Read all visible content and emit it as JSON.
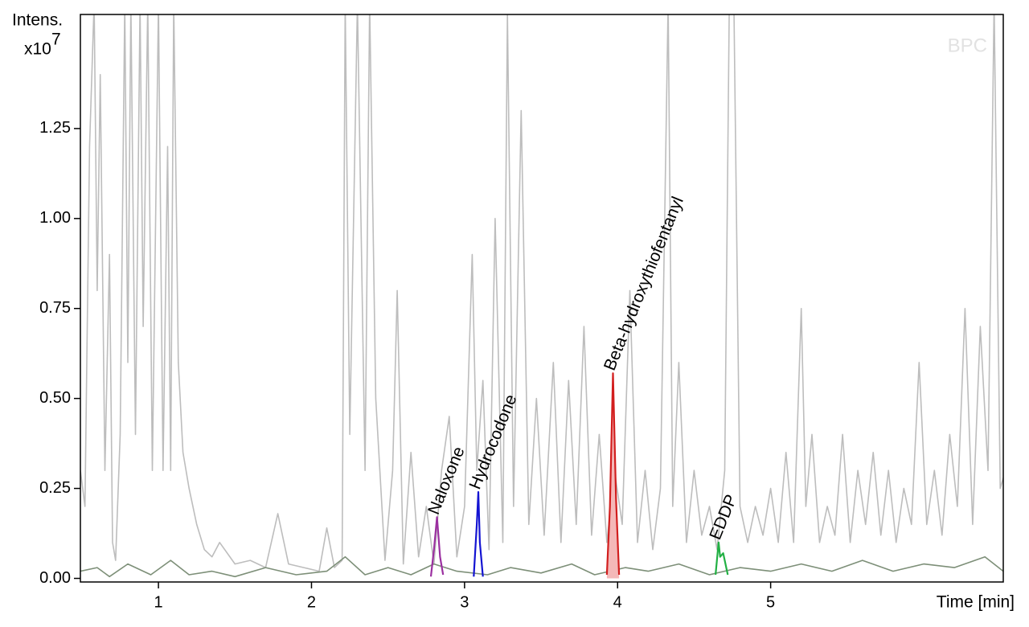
{
  "chart_data": {
    "type": "line",
    "ylabel": "Intens.",
    "yscale_label": "x10",
    "yscale_exponent": 7,
    "xlabel": "Time [min]",
    "watermark": "BPC",
    "xlim": [
      0.49,
      6.52
    ],
    "ylim": [
      -0.01,
      1.567
    ],
    "xticks": [
      1,
      2,
      3,
      4,
      5
    ],
    "yticks": [
      {
        "value": 0,
        "label": "0.00"
      },
      0.25,
      {
        "value": 0.5,
        "label": "0.50"
      },
      0.75,
      {
        "value": 1,
        "label": "1.00"
      },
      1.25
    ],
    "series": [
      {
        "color": "#bdbdbd",
        "x": [
          0.49,
          0.52,
          0.55,
          0.58,
          0.6,
          0.62,
          0.65,
          0.68,
          0.7,
          0.72,
          0.75,
          0.78,
          0.8,
          0.82,
          0.85,
          0.88,
          0.9,
          0.93,
          0.96,
          1.0,
          1.03,
          1.06,
          1.08,
          1.1,
          1.13,
          1.16,
          1.2,
          1.25,
          1.3,
          1.35,
          1.4,
          1.5,
          1.6,
          1.7,
          1.78,
          1.85,
          1.95,
          2.05,
          2.1,
          2.15,
          2.2,
          2.22,
          2.25,
          2.3,
          2.35,
          2.38,
          2.42,
          2.48,
          2.53,
          2.56,
          2.6,
          2.65,
          2.7,
          2.75,
          2.8,
          2.85,
          2.9,
          2.95,
          3.0,
          3.05,
          3.08,
          3.12,
          3.16,
          3.2,
          3.25,
          3.28,
          3.32,
          3.37,
          3.42,
          3.47,
          3.52,
          3.58,
          3.63,
          3.68,
          3.73,
          3.78,
          3.83,
          3.88,
          3.93,
          3.98,
          4.03,
          4.08,
          4.13,
          4.18,
          4.23,
          4.28,
          4.33,
          4.36,
          4.4,
          4.45,
          4.5,
          4.55,
          4.6,
          4.65,
          4.7,
          4.73,
          4.76,
          4.8,
          4.85,
          4.9,
          4.95,
          5.0,
          5.05,
          5.1,
          5.15,
          5.2,
          5.23,
          5.27,
          5.32,
          5.37,
          5.42,
          5.47,
          5.52,
          5.57,
          5.62,
          5.67,
          5.72,
          5.77,
          5.82,
          5.87,
          5.92,
          5.97,
          6.02,
          6.07,
          6.12,
          6.17,
          6.22,
          6.27,
          6.32,
          6.37,
          6.42,
          6.46,
          6.5,
          6.52
        ],
        "values": [
          0.3,
          0.2,
          1.2,
          1.6,
          0.8,
          1.4,
          0.3,
          0.9,
          0.1,
          0.05,
          0.4,
          1.6,
          0.6,
          1.6,
          0.4,
          1.6,
          0.7,
          1.6,
          0.3,
          1.6,
          0.3,
          1.2,
          0.3,
          1.6,
          0.6,
          0.35,
          0.25,
          0.15,
          0.08,
          0.06,
          0.1,
          0.04,
          0.05,
          0.03,
          0.18,
          0.04,
          0.03,
          0.02,
          0.14,
          0.03,
          0.05,
          1.6,
          0.4,
          1.6,
          0.3,
          1.6,
          0.5,
          0.05,
          0.3,
          0.8,
          0.04,
          0.35,
          0.06,
          0.2,
          0.04,
          0.3,
          0.45,
          0.06,
          0.2,
          0.9,
          0.3,
          0.55,
          0.08,
          1.0,
          0.1,
          1.57,
          0.2,
          1.3,
          0.15,
          0.5,
          0.12,
          0.6,
          0.1,
          0.55,
          0.15,
          0.7,
          0.12,
          0.4,
          0.1,
          0.3,
          0.15,
          0.8,
          0.1,
          0.3,
          0.08,
          0.25,
          1.6,
          0.2,
          0.6,
          0.1,
          0.3,
          0.12,
          0.2,
          0.08,
          0.3,
          1.6,
          1.6,
          0.2,
          0.1,
          0.2,
          0.12,
          0.25,
          0.1,
          0.35,
          0.1,
          0.75,
          0.2,
          0.4,
          0.1,
          0.2,
          0.12,
          0.4,
          0.1,
          0.3,
          0.15,
          0.35,
          0.12,
          0.3,
          0.1,
          0.25,
          0.15,
          0.6,
          0.15,
          0.3,
          0.12,
          0.4,
          0.2,
          0.75,
          0.15,
          0.7,
          0.3,
          1.6,
          0.25,
          0.28
        ]
      },
      {
        "color": "#7d8f78",
        "x": [
          0.49,
          0.6,
          0.68,
          0.8,
          0.95,
          1.08,
          1.2,
          1.35,
          1.5,
          1.7,
          1.9,
          2.1,
          2.22,
          2.35,
          2.5,
          2.65,
          2.8,
          2.95,
          3.15,
          3.3,
          3.5,
          3.7,
          3.85,
          4.05,
          4.2,
          4.4,
          4.6,
          4.8,
          5.0,
          5.2,
          5.4,
          5.6,
          5.8,
          6.0,
          6.2,
          6.4,
          6.52
        ],
        "values": [
          0.02,
          0.03,
          0.005,
          0.04,
          0.01,
          0.05,
          0.01,
          0.02,
          0.005,
          0.03,
          0.01,
          0.02,
          0.06,
          0.01,
          0.03,
          0.01,
          0.04,
          0.02,
          0.01,
          0.03,
          0.015,
          0.04,
          0.01,
          0.03,
          0.02,
          0.04,
          0.01,
          0.03,
          0.02,
          0.04,
          0.02,
          0.05,
          0.02,
          0.04,
          0.03,
          0.06,
          0.02
        ]
      },
      {
        "name": "Naloxone",
        "color": "#9b30a0",
        "x": [
          2.78,
          2.8,
          2.82,
          2.84,
          2.86
        ],
        "values": [
          0.005,
          0.08,
          0.17,
          0.06,
          0.01
        ]
      },
      {
        "name": "Hydrocodone",
        "color": "#1414d2",
        "x": [
          3.06,
          3.08,
          3.09,
          3.1,
          3.12
        ],
        "values": [
          0.005,
          0.15,
          0.24,
          0.1,
          0.005
        ]
      },
      {
        "name": "Beta-hydroxythiofentanyl",
        "color": "#d21e1e",
        "fill": "#f4b8b8",
        "x": [
          3.93,
          3.95,
          3.97,
          3.99,
          4.01
        ],
        "values": [
          0.01,
          0.2,
          0.57,
          0.22,
          0.01
        ]
      },
      {
        "name": "EDDP",
        "color": "#22b044",
        "x": [
          4.64,
          4.66,
          4.67,
          4.69,
          4.72
        ],
        "values": [
          0.01,
          0.1,
          0.06,
          0.07,
          0.01
        ]
      }
    ]
  }
}
